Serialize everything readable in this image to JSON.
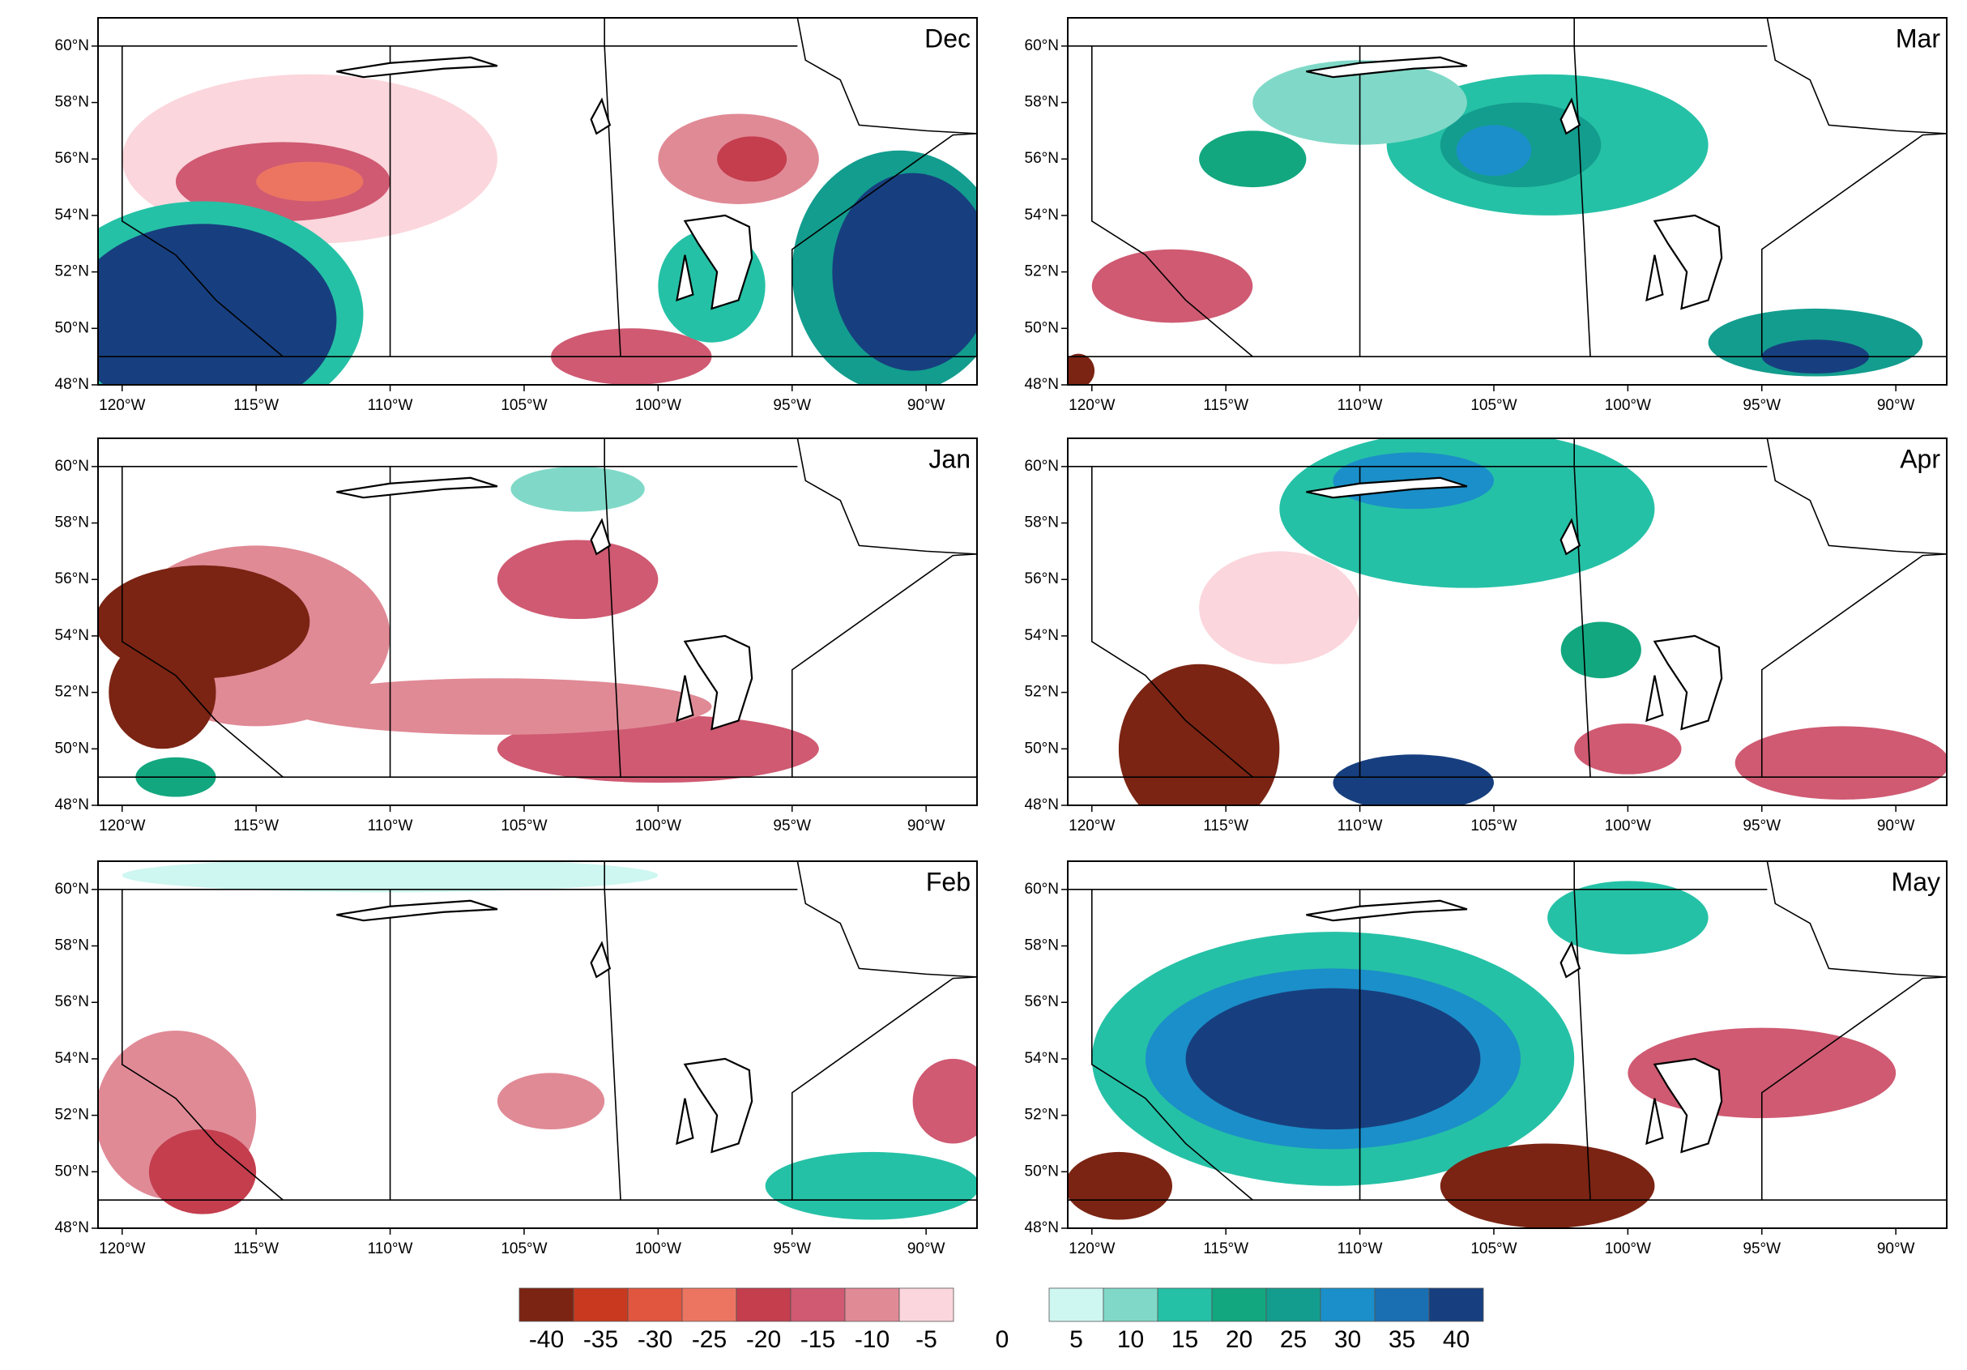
{
  "panels": [
    {
      "title": "Dec"
    },
    {
      "title": "Mar"
    },
    {
      "title": "Jan"
    },
    {
      "title": "Apr"
    },
    {
      "title": "Feb"
    },
    {
      "title": "May"
    }
  ],
  "lat_ticks": [
    {
      "value": 48,
      "label": "48°N"
    },
    {
      "value": 50,
      "label": "50°N"
    },
    {
      "value": 52,
      "label": "52°N"
    },
    {
      "value": 54,
      "label": "54°N"
    },
    {
      "value": 56,
      "label": "56°N"
    },
    {
      "value": 58,
      "label": "58°N"
    },
    {
      "value": 60,
      "label": "60°N"
    }
  ],
  "lon_ticks": [
    {
      "value": -120,
      "label": "120°W"
    },
    {
      "value": -115,
      "label": "115°W"
    },
    {
      "value": -110,
      "label": "110°W"
    },
    {
      "value": -105,
      "label": "105°W"
    },
    {
      "value": -100,
      "label": "100°W"
    },
    {
      "value": -95,
      "label": "95°W"
    },
    {
      "value": -90,
      "label": "90°W"
    }
  ],
  "colorbar": {
    "negative_labels": [
      -40,
      -35,
      -30,
      -25,
      -20,
      -15,
      -10,
      -5
    ],
    "zero_label": 0,
    "positive_labels": [
      5,
      10,
      15,
      20,
      25,
      30,
      35,
      40
    ],
    "negative_colors": [
      "#7b2413",
      "#c9391f",
      "#e0563f",
      "#ec7562",
      "#c43e4e",
      "#cf5a72",
      "#e08a96",
      "#fbd6dc"
    ],
    "positive_colors": [
      "#cdf7f0",
      "#80d9c8",
      "#25c1a6",
      "#12a77f",
      "#139d8e",
      "#1b8fc9",
      "#1a6fb2",
      "#173f7f"
    ]
  }
}
